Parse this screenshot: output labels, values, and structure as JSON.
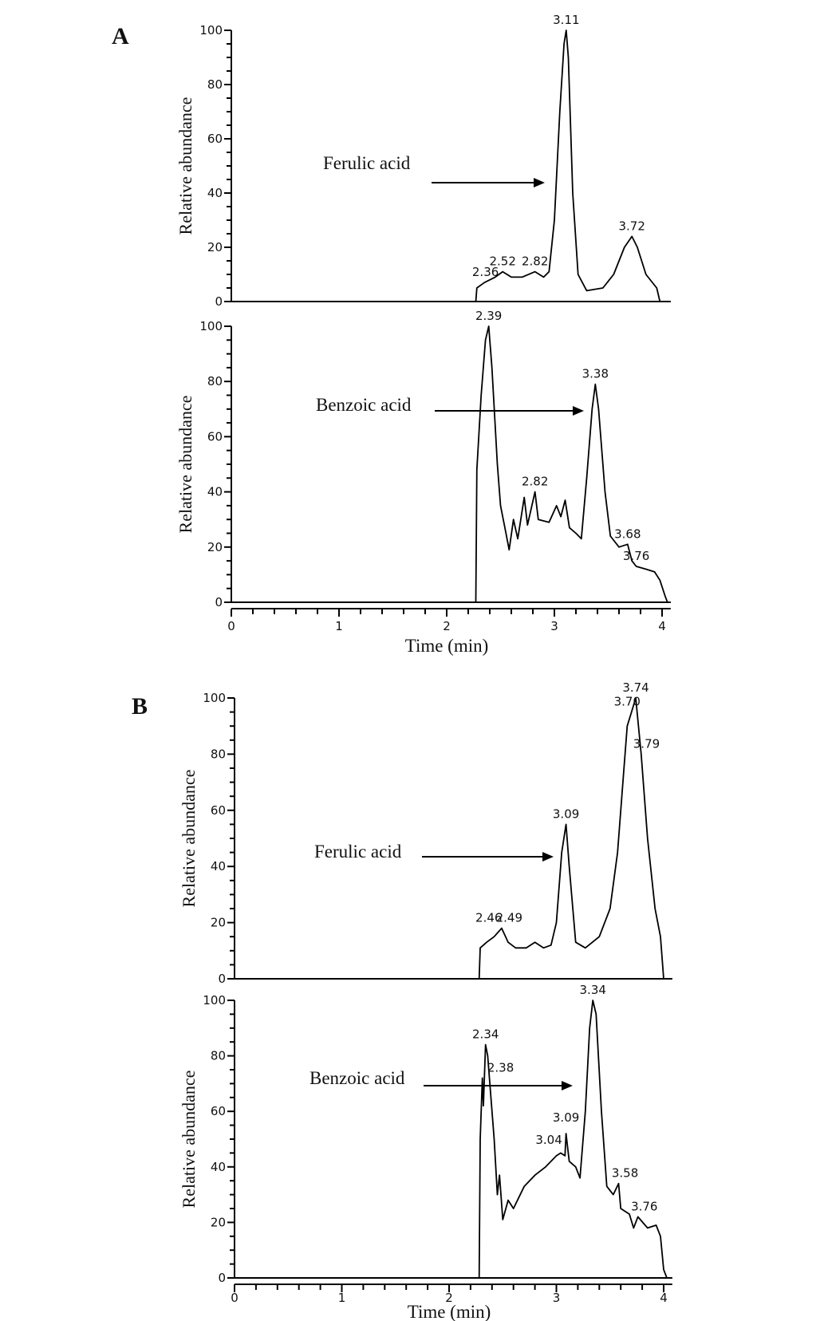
{
  "figure_labels": [
    "A",
    "B"
  ],
  "chart_data": [
    {
      "type": "line",
      "panel": "A",
      "xlabel": "",
      "ylabel": "Relative abundance",
      "xlim": [
        0,
        4.08
      ],
      "ylim": [
        0,
        100
      ],
      "yticks": [
        0,
        20,
        40,
        60,
        80,
        100
      ],
      "xticks": [],
      "annotation": "Ferulic acid",
      "series": [
        {
          "points": [
            [
              0,
              0
            ],
            [
              2.27,
              0
            ],
            [
              2.28,
              5
            ],
            [
              2.35,
              7
            ],
            [
              2.45,
              9
            ],
            [
              2.52,
              11
            ],
            [
              2.6,
              9
            ],
            [
              2.7,
              9
            ],
            [
              2.82,
              11
            ],
            [
              2.9,
              9
            ],
            [
              2.95,
              11
            ],
            [
              3.0,
              30
            ],
            [
              3.05,
              70
            ],
            [
              3.09,
              95
            ],
            [
              3.11,
              100
            ],
            [
              3.13,
              90
            ],
            [
              3.17,
              40
            ],
            [
              3.22,
              10
            ],
            [
              3.3,
              4
            ],
            [
              3.45,
              5
            ],
            [
              3.55,
              10
            ],
            [
              3.65,
              20
            ],
            [
              3.72,
              24
            ],
            [
              3.77,
              20
            ],
            [
              3.85,
              10
            ],
            [
              3.95,
              5
            ],
            [
              3.98,
              0
            ],
            [
              4.08,
              0
            ]
          ]
        }
      ],
      "peak_labels": [
        {
          "text": "3.11",
          "t": 3.11,
          "v": 100
        },
        {
          "text": "3.72",
          "t": 3.72,
          "v": 24
        },
        {
          "text": "2.36",
          "t": 2.36,
          "v": 7
        },
        {
          "text": "2.52",
          "t": 2.52,
          "v": 11
        },
        {
          "text": "2.82",
          "t": 2.82,
          "v": 11
        }
      ]
    },
    {
      "type": "line",
      "panel": "A",
      "xlabel": "Time (min)",
      "ylabel": "Relative abundance",
      "xlim": [
        0,
        4.08
      ],
      "ylim": [
        0,
        100
      ],
      "yticks": [
        0,
        20,
        40,
        60,
        80,
        100
      ],
      "xticks": [
        0,
        1,
        2,
        3,
        4
      ],
      "annotation": "Benzoic acid",
      "series": [
        {
          "points": [
            [
              0,
              0
            ],
            [
              2.27,
              0
            ],
            [
              2.28,
              48
            ],
            [
              2.32,
              75
            ],
            [
              2.36,
              95
            ],
            [
              2.39,
              100
            ],
            [
              2.42,
              85
            ],
            [
              2.47,
              50
            ],
            [
              2.5,
              35
            ],
            [
              2.55,
              25
            ],
            [
              2.58,
              19
            ],
            [
              2.62,
              30
            ],
            [
              2.66,
              23
            ],
            [
              2.72,
              38
            ],
            [
              2.75,
              28
            ],
            [
              2.82,
              40
            ],
            [
              2.85,
              30
            ],
            [
              2.95,
              29
            ],
            [
              3.02,
              35
            ],
            [
              3.06,
              31
            ],
            [
              3.1,
              37
            ],
            [
              3.14,
              27
            ],
            [
              3.2,
              25
            ],
            [
              3.25,
              23
            ],
            [
              3.3,
              45
            ],
            [
              3.35,
              70
            ],
            [
              3.38,
              79
            ],
            [
              3.41,
              70
            ],
            [
              3.47,
              40
            ],
            [
              3.52,
              24
            ],
            [
              3.6,
              20
            ],
            [
              3.68,
              21
            ],
            [
              3.72,
              15
            ],
            [
              3.76,
              13
            ],
            [
              3.85,
              12
            ],
            [
              3.93,
              11
            ],
            [
              3.98,
              8
            ],
            [
              4.03,
              2
            ],
            [
              4.05,
              0
            ],
            [
              4.08,
              0
            ]
          ]
        }
      ],
      "peak_labels": [
        {
          "text": "2.39",
          "t": 2.39,
          "v": 100
        },
        {
          "text": "3.38",
          "t": 3.38,
          "v": 79
        },
        {
          "text": "2.82",
          "t": 2.82,
          "v": 40
        },
        {
          "text": "3.68",
          "t": 3.68,
          "v": 21
        },
        {
          "text": "3.76",
          "t": 3.76,
          "v": 13
        }
      ]
    },
    {
      "type": "line",
      "panel": "B",
      "xlabel": "",
      "ylabel": "Relative abundance",
      "xlim": [
        0,
        4.08
      ],
      "ylim": [
        0,
        100
      ],
      "yticks": [
        0,
        20,
        40,
        60,
        80,
        100
      ],
      "xticks": [],
      "annotation": "Ferulic acid",
      "series": [
        {
          "points": [
            [
              0,
              0
            ],
            [
              2.28,
              0
            ],
            [
              2.29,
              11
            ],
            [
              2.35,
              13
            ],
            [
              2.42,
              15
            ],
            [
              2.49,
              18
            ],
            [
              2.55,
              13
            ],
            [
              2.62,
              11
            ],
            [
              2.72,
              11
            ],
            [
              2.8,
              13
            ],
            [
              2.88,
              11
            ],
            [
              2.95,
              12
            ],
            [
              3.0,
              20
            ],
            [
              3.05,
              45
            ],
            [
              3.09,
              55
            ],
            [
              3.12,
              40
            ],
            [
              3.18,
              13
            ],
            [
              3.27,
              11
            ],
            [
              3.4,
              15
            ],
            [
              3.5,
              25
            ],
            [
              3.57,
              45
            ],
            [
              3.62,
              70
            ],
            [
              3.66,
              90
            ],
            [
              3.7,
              95
            ],
            [
              3.74,
              100
            ],
            [
              3.79,
              80
            ],
            [
              3.85,
              50
            ],
            [
              3.92,
              25
            ],
            [
              3.97,
              15
            ],
            [
              4.0,
              0
            ],
            [
              4.08,
              0
            ]
          ]
        }
      ],
      "peak_labels": [
        {
          "text": "3.74",
          "t": 3.74,
          "v": 100
        },
        {
          "text": "3.70",
          "t": 3.66,
          "v": 95
        },
        {
          "text": "3.79",
          "t": 3.84,
          "v": 80
        },
        {
          "text": "3.09",
          "t": 3.09,
          "v": 55
        },
        {
          "text": "2.46",
          "t": 2.37,
          "v": 18
        },
        {
          "text": "2.49",
          "t": 2.56,
          "v": 18
        }
      ]
    },
    {
      "type": "line",
      "panel": "B",
      "xlabel": "Time (min)",
      "ylabel": "Relative abundance",
      "xlim": [
        0,
        4.08
      ],
      "ylim": [
        0,
        100
      ],
      "yticks": [
        0,
        20,
        40,
        60,
        80,
        100
      ],
      "xticks": [
        0,
        1,
        2,
        3,
        4
      ],
      "annotation": "Benzoic acid",
      "series": [
        {
          "points": [
            [
              0,
              0
            ],
            [
              2.28,
              0
            ],
            [
              2.29,
              50
            ],
            [
              2.31,
              72
            ],
            [
              2.32,
              62
            ],
            [
              2.34,
              84
            ],
            [
              2.36,
              80
            ],
            [
              2.38,
              70
            ],
            [
              2.42,
              50
            ],
            [
              2.45,
              30
            ],
            [
              2.47,
              37
            ],
            [
              2.5,
              21
            ],
            [
              2.55,
              28
            ],
            [
              2.6,
              25
            ],
            [
              2.7,
              33
            ],
            [
              2.8,
              37
            ],
            [
              2.9,
              40
            ],
            [
              3.0,
              44
            ],
            [
              3.04,
              45
            ],
            [
              3.08,
              44
            ],
            [
              3.09,
              52
            ],
            [
              3.12,
              42
            ],
            [
              3.18,
              40
            ],
            [
              3.22,
              36
            ],
            [
              3.27,
              60
            ],
            [
              3.31,
              90
            ],
            [
              3.34,
              100
            ],
            [
              3.37,
              95
            ],
            [
              3.42,
              60
            ],
            [
              3.47,
              33
            ],
            [
              3.53,
              30
            ],
            [
              3.58,
              34
            ],
            [
              3.6,
              25
            ],
            [
              3.68,
              23
            ],
            [
              3.72,
              18
            ],
            [
              3.76,
              22
            ],
            [
              3.85,
              18
            ],
            [
              3.93,
              19
            ],
            [
              3.97,
              15
            ],
            [
              4.0,
              3
            ],
            [
              4.03,
              0
            ],
            [
              4.08,
              0
            ]
          ]
        }
      ],
      "peak_labels": [
        {
          "text": "3.34",
          "t": 3.34,
          "v": 100
        },
        {
          "text": "2.34",
          "t": 2.34,
          "v": 84
        },
        {
          "text": "2.38",
          "t": 2.48,
          "v": 72
        },
        {
          "text": "3.09",
          "t": 3.09,
          "v": 54
        },
        {
          "text": "3.04",
          "t": 2.93,
          "v": 46
        },
        {
          "text": "3.58",
          "t": 3.64,
          "v": 34
        },
        {
          "text": "3.76",
          "t": 3.82,
          "v": 22
        }
      ]
    }
  ]
}
